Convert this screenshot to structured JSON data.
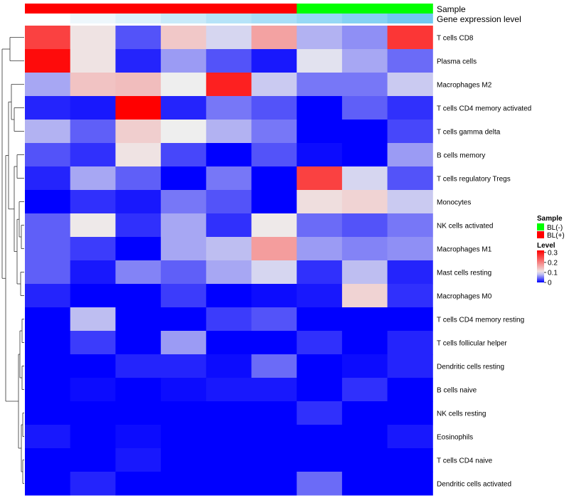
{
  "chart_data": {
    "type": "heatmap",
    "annotation_tracks": [
      {
        "label": "Sample",
        "values": [
          "BL(+)",
          "BL(+)",
          "BL(+)",
          "BL(+)",
          "BL(+)",
          "BL(+)",
          "BL(-)",
          "BL(-)",
          "BL(-)"
        ]
      },
      {
        "label": "Gene expression level",
        "values": [
          0.05,
          0.1,
          0.2,
          0.3,
          0.4,
          0.5,
          0.6,
          0.7,
          0.8
        ]
      }
    ],
    "rows": [
      "T cells CD8",
      "Plasma cells",
      "Macrophages M2",
      "T cells CD4 memory activated",
      "T cells gamma delta",
      "B cells memory",
      "T cells regulatory  Tregs",
      "Monocytes",
      "NK cells activated",
      "Macrophages M1",
      "Mast cells resting",
      "Macrophages M0",
      "T cells CD4 memory resting",
      "T cells follicular helper",
      "Dendritic cells resting",
      "B cells naive",
      "NK cells resting",
      "Eosinophils",
      "T cells CD4 naive",
      "Dendritic cells activated"
    ],
    "values": [
      [
        0.26,
        0.11,
        0.035,
        0.135,
        0.09,
        0.17,
        0.075,
        0.06,
        0.27
      ],
      [
        0.31,
        0.11,
        0.015,
        0.065,
        0.035,
        0.01,
        0.095,
        0.07,
        0.045
      ],
      [
        0.07,
        0.14,
        0.145,
        0.1,
        0.29,
        0.085,
        0.05,
        0.05,
        0.085
      ],
      [
        0.015,
        0.01,
        0.32,
        0.015,
        0.05,
        0.035,
        0.0,
        0.04,
        0.02
      ],
      [
        0.075,
        0.04,
        0.13,
        0.1,
        0.075,
        0.05,
        0.0,
        0.0,
        0.03
      ],
      [
        0.035,
        0.02,
        0.11,
        0.03,
        0.0,
        0.035,
        0.005,
        0.0,
        0.065
      ],
      [
        0.015,
        0.07,
        0.04,
        0.0,
        0.05,
        0.0,
        0.26,
        0.09,
        0.035
      ],
      [
        0.0,
        0.02,
        0.01,
        0.05,
        0.035,
        0.0,
        0.115,
        0.125,
        0.085
      ],
      [
        0.04,
        0.105,
        0.02,
        0.07,
        0.02,
        0.105,
        0.045,
        0.035,
        0.05
      ],
      [
        0.04,
        0.025,
        0.0,
        0.07,
        0.08,
        0.175,
        0.065,
        0.055,
        0.06
      ],
      [
        0.04,
        0.01,
        0.055,
        0.04,
        0.07,
        0.09,
        0.02,
        0.08,
        0.015
      ],
      [
        0.015,
        0.0,
        0.0,
        0.025,
        0.0,
        0.005,
        0.01,
        0.125,
        0.02
      ],
      [
        0.0,
        0.08,
        0.0,
        0.0,
        0.025,
        0.035,
        0.0,
        0.0,
        0.0
      ],
      [
        0.0,
        0.025,
        0.0,
        0.065,
        0.0,
        0.0,
        0.02,
        0.0,
        0.015
      ],
      [
        0.0,
        0.0,
        0.015,
        0.015,
        0.005,
        0.045,
        0.0,
        0.005,
        0.015
      ],
      [
        0.0,
        0.005,
        0.0,
        0.005,
        0.01,
        0.01,
        0.0,
        0.02,
        0.0
      ],
      [
        0.0,
        0.0,
        0.0,
        0.0,
        0.0,
        0.0,
        0.02,
        0.0,
        0.0
      ],
      [
        0.01,
        0.0,
        0.005,
        0.0,
        0.0,
        0.0,
        0.0,
        0.0,
        0.01
      ],
      [
        0.0,
        0.0,
        0.01,
        0.0,
        0.0,
        0.0,
        0.0,
        0.0,
        0.0
      ],
      [
        0.0,
        0.015,
        0.0,
        0.0,
        0.0,
        0.0,
        0.045,
        0.0,
        0.0
      ]
    ],
    "color_scale": {
      "min": 0.0,
      "mid": 0.1,
      "max": 0.32,
      "low_color": "#0000ff",
      "mid_color": "#eeeeee",
      "high_color": "#ff0000"
    },
    "legend": {
      "placement": "right",
      "sample_title": "Sample",
      "sample_entries": [
        {
          "label": "BL(-)",
          "color": "#00ff00"
        },
        {
          "label": "BL(+)",
          "color": "#ff0000"
        }
      ],
      "level_title": "Level",
      "level_ticks": [
        {
          "label": "0.3",
          "value": 0.3
        },
        {
          "label": "0.2",
          "value": 0.2
        },
        {
          "label": "0.1",
          "value": 0.1
        },
        {
          "label": "0",
          "value": 0.0
        }
      ]
    },
    "sample_colors": {
      "BL(+)": "#ff0000",
      "BL(-)": "#00ff00"
    },
    "expression_track_colors": [
      "#ffffff",
      "#eef7fc",
      "#ddf1fb",
      "#c9eaf9",
      "#b6e3f8",
      "#a8def7",
      "#96d8f5",
      "#84d1f3",
      "#70c8f1"
    ],
    "row_dendrogram": true,
    "grid": false
  }
}
